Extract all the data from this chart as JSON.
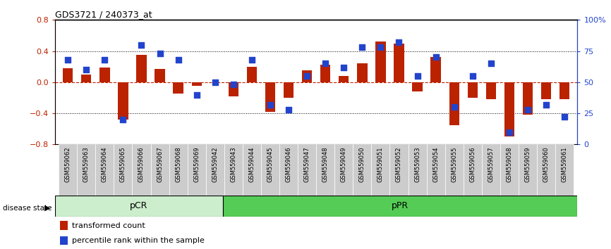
{
  "title": "GDS3721 / 240373_at",
  "samples": [
    "GSM559062",
    "GSM559063",
    "GSM559064",
    "GSM559065",
    "GSM559066",
    "GSM559067",
    "GSM559068",
    "GSM559069",
    "GSM559042",
    "GSM559043",
    "GSM559044",
    "GSM559045",
    "GSM559046",
    "GSM559047",
    "GSM559048",
    "GSM559049",
    "GSM559050",
    "GSM559051",
    "GSM559052",
    "GSM559053",
    "GSM559054",
    "GSM559055",
    "GSM559056",
    "GSM559057",
    "GSM559058",
    "GSM559059",
    "GSM559060",
    "GSM559061"
  ],
  "red_values": [
    0.18,
    0.1,
    0.19,
    -0.48,
    0.35,
    0.17,
    -0.15,
    -0.05,
    0.0,
    -0.18,
    0.2,
    -0.38,
    -0.2,
    0.15,
    0.22,
    0.08,
    0.24,
    0.52,
    0.5,
    -0.12,
    0.32,
    -0.55,
    -0.2,
    -0.22,
    -0.7,
    -0.42,
    -0.22,
    -0.22
  ],
  "blue_values": [
    68,
    60,
    68,
    20,
    80,
    73,
    68,
    40,
    50,
    48,
    68,
    32,
    28,
    55,
    65,
    62,
    78,
    78,
    82,
    55,
    70,
    30,
    55,
    65,
    10,
    28,
    32,
    22
  ],
  "pcr_count": 9,
  "ppr_count": 19,
  "ylim_left": [
    -0.8,
    0.8
  ],
  "ylim_right": [
    0,
    100
  ],
  "yticks_left": [
    -0.8,
    -0.4,
    0.0,
    0.4,
    0.8
  ],
  "yticks_right": [
    0,
    25,
    50,
    75,
    100
  ],
  "ytick_labels_right": [
    "0",
    "25",
    "50",
    "75",
    "100%"
  ],
  "red_color": "#bb2200",
  "blue_color": "#2244cc",
  "background_label_pcr": "#cceecc",
  "background_label_ppr": "#55cc55",
  "bar_width": 0.55,
  "dot_size": 30,
  "label_bg_color": "#cccccc"
}
